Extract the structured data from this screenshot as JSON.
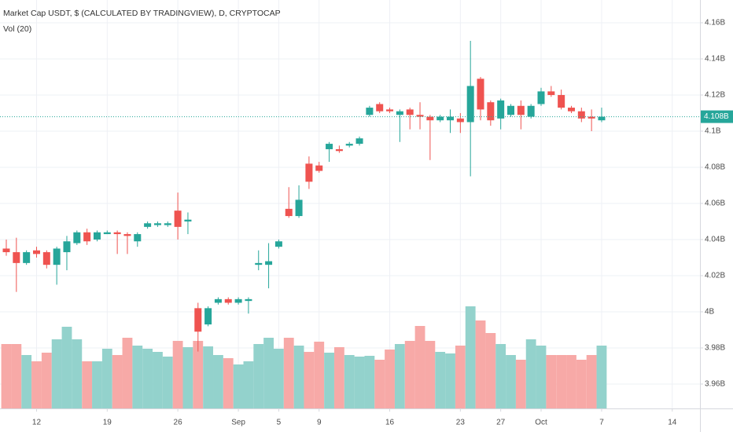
{
  "chart_data": {
    "type": "candlestick",
    "title": "Market Cap USDT, $ (CALCULATED BY TRADINGVIEW), D, CRYPTOCAP",
    "subtitle": "Vol (20)",
    "x": [
      "08-09",
      "08-10",
      "08-11",
      "08-12",
      "08-13",
      "08-14",
      "08-15",
      "08-16",
      "08-17",
      "08-18",
      "08-19",
      "08-20",
      "08-21",
      "08-22",
      "08-23",
      "08-24",
      "08-25",
      "08-26",
      "08-27",
      "08-28",
      "08-29",
      "08-30",
      "08-31",
      "09-01",
      "09-02",
      "09-03",
      "09-04",
      "09-05",
      "09-06",
      "09-07",
      "09-08",
      "09-09",
      "09-10",
      "09-11",
      "09-12",
      "09-13",
      "09-14",
      "09-15",
      "09-16",
      "09-17",
      "09-18",
      "09-19",
      "09-20",
      "09-21",
      "09-22",
      "09-23",
      "09-24",
      "09-25",
      "09-26",
      "09-27",
      "09-28",
      "09-29",
      "09-30",
      "10-01",
      "10-02",
      "10-03",
      "10-04",
      "10-05",
      "10-06",
      "10-07"
    ],
    "open": [
      4.035,
      4.033,
      4.027,
      4.034,
      4.033,
      4.026,
      4.033,
      4.038,
      4.044,
      4.04,
      4.043,
      4.044,
      4.043,
      4.039,
      4.047,
      4.048,
      4.048,
      4.056,
      4.05,
      4.002,
      3.993,
      4.005,
      4.007,
      4.005,
      4.006,
      4.026,
      4.026,
      4.036,
      4.057,
      4.053,
      4.082,
      4.081,
      4.09,
      4.09,
      4.092,
      4.093,
      4.109,
      4.115,
      4.112,
      4.109,
      4.112,
      4.109,
      4.108,
      4.106,
      4.106,
      4.107,
      4.105,
      4.129,
      4.116,
      4.107,
      4.109,
      4.114,
      4.108,
      4.115,
      4.122,
      4.12,
      4.113,
      4.111,
      4.108,
      4.106
    ],
    "high": [
      4.04,
      4.041,
      4.034,
      4.036,
      4.034,
      4.036,
      4.042,
      4.045,
      4.046,
      4.045,
      4.045,
      4.045,
      4.044,
      4.044,
      4.05,
      4.05,
      4.05,
      4.066,
      4.055,
      4.005,
      4.003,
      4.008,
      4.008,
      4.008,
      4.008,
      4.034,
      4.038,
      4.04,
      4.069,
      4.07,
      4.086,
      4.083,
      4.094,
      4.092,
      4.094,
      4.097,
      4.114,
      4.116,
      4.113,
      4.112,
      4.113,
      4.116,
      4.109,
      4.109,
      4.112,
      4.11,
      4.15,
      4.13,
      4.117,
      4.118,
      4.115,
      4.117,
      4.115,
      4.124,
      4.125,
      4.123,
      4.114,
      4.113,
      4.112,
      4.113
    ],
    "low": [
      4.031,
      4.011,
      4.026,
      4.03,
      4.024,
      4.015,
      4.023,
      4.037,
      4.037,
      4.039,
      4.043,
      4.032,
      4.032,
      4.036,
      4.046,
      4.047,
      4.047,
      4.04,
      4.043,
      3.978,
      3.992,
      4.004,
      4.004,
      4.004,
      3.999,
      4.023,
      4.013,
      4.035,
      4.052,
      4.052,
      4.068,
      4.077,
      4.083,
      4.088,
      4.091,
      4.092,
      4.108,
      4.11,
      4.11,
      4.094,
      4.101,
      4.101,
      4.084,
      4.105,
      4.099,
      4.099,
      4.075,
      4.106,
      4.103,
      4.101,
      4.108,
      4.101,
      4.107,
      4.114,
      4.119,
      4.112,
      4.11,
      4.105,
      4.1,
      4.105
    ],
    "close": [
      4.033,
      4.027,
      4.033,
      4.032,
      4.026,
      4.035,
      4.039,
      4.044,
      4.039,
      4.044,
      4.044,
      4.043,
      4.042,
      4.043,
      4.049,
      4.049,
      4.049,
      4.047,
      4.051,
      3.989,
      4.002,
      4.007,
      4.005,
      4.007,
      4.007,
      4.027,
      4.028,
      4.039,
      4.053,
      4.062,
      4.072,
      4.078,
      4.093,
      4.089,
      4.093,
      4.096,
      4.113,
      4.111,
      4.111,
      4.111,
      4.109,
      4.108,
      4.106,
      4.108,
      4.108,
      4.105,
      4.125,
      4.112,
      4.106,
      4.117,
      4.114,
      4.109,
      4.114,
      4.122,
      4.12,
      4.113,
      4.111,
      4.107,
      4.107,
      4.108
    ],
    "volume": [
      82,
      82,
      68,
      60,
      71,
      88,
      104,
      88,
      60,
      60,
      76,
      68,
      90,
      80,
      76,
      72,
      66,
      86,
      78,
      86,
      79,
      68,
      64,
      56,
      60,
      82,
      90,
      76,
      90,
      80,
      72,
      85,
      71,
      78,
      68,
      66,
      67,
      62,
      75,
      82,
      86,
      105,
      86,
      72,
      70,
      80,
      130,
      112,
      96,
      82,
      68,
      62,
      88,
      80,
      68,
      68,
      68,
      62,
      68,
      80
    ],
    "up_color": "#26a69a",
    "down_color": "#ef5350",
    "volume_up_color": "#93d2cc",
    "volume_down_color": "#f7a9a7",
    "ylim": [
      3.9465,
      4.1726
    ],
    "yticks": [
      {
        "value": 4.16,
        "label": "4.16B"
      },
      {
        "value": 4.14,
        "label": "4.14B"
      },
      {
        "value": 4.12,
        "label": "4.12B"
      },
      {
        "value": 4.1,
        "label": "4.1B"
      },
      {
        "value": 4.08,
        "label": "4.08B"
      },
      {
        "value": 4.06,
        "label": "4.06B"
      },
      {
        "value": 4.04,
        "label": "4.04B"
      },
      {
        "value": 4.02,
        "label": "4.02B"
      },
      {
        "value": 4,
        "label": "4B"
      },
      {
        "value": 3.98,
        "label": "3.98B"
      },
      {
        "value": 3.96,
        "label": "3.96B"
      }
    ],
    "xticks": [
      {
        "value": "08-12",
        "label": "12"
      },
      {
        "value": "08-19",
        "label": "19"
      },
      {
        "value": "08-26",
        "label": "26"
      },
      {
        "value": "09-01",
        "label": "Sep"
      },
      {
        "value": "09-05",
        "label": "5"
      },
      {
        "value": "09-09",
        "label": "9"
      },
      {
        "value": "09-16",
        "label": "16"
      },
      {
        "value": "09-23",
        "label": "23"
      },
      {
        "value": "09-27",
        "label": "27"
      },
      {
        "value": "10-01",
        "label": "Oct"
      },
      {
        "value": "10-07",
        "label": "7"
      },
      {
        "value": "10-14",
        "label": "14"
      }
    ],
    "last_price": {
      "value": 4.108,
      "label": "4.108B"
    },
    "grid": true
  }
}
